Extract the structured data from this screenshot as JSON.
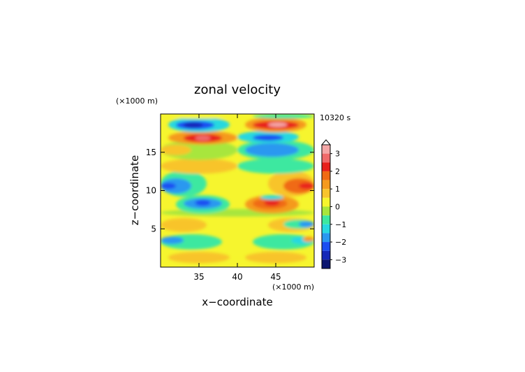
{
  "chart_data": {
    "type": "heatmap",
    "title": "zonal velocity",
    "time_label": "10320 s",
    "xlabel": "x−coordinate",
    "ylabel": "z−coordinate",
    "x_unit": "(×1000 m)",
    "y_unit": "(×1000 m)",
    "xlim": [
      30,
      50
    ],
    "ylim": [
      0,
      20
    ],
    "x_ticks": [
      "35",
      "40",
      "45"
    ],
    "x_tick_values": [
      35,
      40,
      45
    ],
    "y_ticks": [
      "5",
      "10",
      "15"
    ],
    "y_tick_values": [
      5,
      10,
      15
    ],
    "grid": false,
    "colorbar": {
      "position": "right",
      "labels": [
        "3",
        "2",
        "1",
        "0",
        "−1",
        "−2",
        "−3"
      ],
      "label_values": [
        3,
        2,
        1,
        0,
        -1,
        -2,
        -3
      ],
      "range": [
        -3.5,
        3.5
      ],
      "levels": [
        {
          "min": 3.0,
          "max": 3.5,
          "color": "#f4a6a6"
        },
        {
          "min": 2.5,
          "max": 3.0,
          "color": "#f06a6a"
        },
        {
          "min": 2.0,
          "max": 2.5,
          "color": "#e8201c"
        },
        {
          "min": 1.5,
          "max": 2.0,
          "color": "#f06a14"
        },
        {
          "min": 1.0,
          "max": 1.5,
          "color": "#f59a1e"
        },
        {
          "min": 0.5,
          "max": 1.0,
          "color": "#f8c42c"
        },
        {
          "min": 0.0,
          "max": 0.5,
          "color": "#f6f52e"
        },
        {
          "min": -0.5,
          "max": 0.0,
          "color": "#a8e63c"
        },
        {
          "min": -1.0,
          "max": -0.5,
          "color": "#3de8a0"
        },
        {
          "min": -1.5,
          "max": -1.0,
          "color": "#28d8e0"
        },
        {
          "min": -2.0,
          "max": -1.5,
          "color": "#2a98f0"
        },
        {
          "min": -2.5,
          "max": -2.0,
          "color": "#1a4ef2"
        },
        {
          "min": -3.0,
          "max": -2.5,
          "color": "#1528b8"
        },
        {
          "min": -3.5,
          "max": -3.0,
          "color": "#0c1670"
        }
      ]
    },
    "bands": [
      {
        "z": [
          0.0,
          1.0
        ],
        "x": [
          30,
          50
        ],
        "value": 0.2
      },
      {
        "z": [
          0.5,
          2.0
        ],
        "x": [
          31,
          39
        ],
        "value": 0.7
      },
      {
        "z": [
          0.5,
          2.0
        ],
        "x": [
          41,
          49
        ],
        "value": 0.7
      },
      {
        "z": [
          2.3,
          4.3
        ],
        "x": [
          30,
          38
        ],
        "value": -0.7
      },
      {
        "z": [
          2.3,
          4.3
        ],
        "x": [
          42,
          50
        ],
        "value": -0.7
      },
      {
        "z": [
          3.0,
          4.0
        ],
        "x": [
          30,
          33
        ],
        "value": -1.7
      },
      {
        "z": [
          3.0,
          4.0
        ],
        "x": [
          47,
          50
        ],
        "value": -1.2
      },
      {
        "z": [
          3.3,
          4.0
        ],
        "x": [
          48.5,
          50
        ],
        "value": 1.3
      },
      {
        "z": [
          4.6,
          6.4
        ],
        "x": [
          30,
          36
        ],
        "value": 0.8
      },
      {
        "z": [
          4.6,
          6.4
        ],
        "x": [
          44,
          50
        ],
        "value": 0.8
      },
      {
        "z": [
          5.0,
          6.2
        ],
        "x": [
          46,
          50
        ],
        "value": -0.8
      },
      {
        "z": [
          5.2,
          6.0
        ],
        "x": [
          48,
          50
        ],
        "value": -1.7
      },
      {
        "z": [
          6.6,
          7.6
        ],
        "x": [
          30,
          50
        ],
        "value": -0.2
      },
      {
        "z": [
          7.0,
          9.4
        ],
        "x": [
          32,
          39
        ],
        "value": -0.8
      },
      {
        "z": [
          7.6,
          9.0
        ],
        "x": [
          33,
          38
        ],
        "value": -1.7
      },
      {
        "z": [
          8.0,
          8.8
        ],
        "x": [
          34.5,
          36.5
        ],
        "value": -2.3
      },
      {
        "z": [
          7.0,
          9.4
        ],
        "x": [
          41,
          48
        ],
        "value": 1.2
      },
      {
        "z": [
          7.6,
          9.0
        ],
        "x": [
          42,
          46.5
        ],
        "value": 1.7
      },
      {
        "z": [
          8.0,
          8.8
        ],
        "x": [
          43.5,
          45.5
        ],
        "value": 2.3
      },
      {
        "z": [
          8.8,
          9.4
        ],
        "x": [
          43,
          46
        ],
        "value": -1.2
      },
      {
        "z": [
          9.2,
          12.6
        ],
        "x": [
          30,
          36
        ],
        "value": -0.8
      },
      {
        "z": [
          9.6,
          11.6
        ],
        "x": [
          30,
          34
        ],
        "value": -1.7
      },
      {
        "z": [
          10.2,
          11.0
        ],
        "x": [
          30,
          32
        ],
        "value": -2.3
      },
      {
        "z": [
          9.2,
          12.6
        ],
        "x": [
          44,
          50
        ],
        "value": 0.8
      },
      {
        "z": [
          9.6,
          11.6
        ],
        "x": [
          46,
          50
        ],
        "value": 1.7
      },
      {
        "z": [
          10.2,
          11.0
        ],
        "x": [
          48,
          50
        ],
        "value": 2.3
      },
      {
        "z": [
          12.2,
          14.2
        ],
        "x": [
          30,
          40
        ],
        "value": 0.7
      },
      {
        "z": [
          12.2,
          14.2
        ],
        "x": [
          40,
          50
        ],
        "value": -0.7
      },
      {
        "z": [
          14.0,
          16.6
        ],
        "x": [
          30,
          40
        ],
        "value": -0.2
      },
      {
        "z": [
          14.0,
          16.6
        ],
        "x": [
          40,
          50
        ],
        "value": -0.8
      },
      {
        "z": [
          14.4,
          16.2
        ],
        "x": [
          41,
          48
        ],
        "value": -1.7
      },
      {
        "z": [
          14.6,
          16.0
        ],
        "x": [
          30,
          34
        ],
        "value": 0.8
      },
      {
        "z": [
          16.0,
          17.8
        ],
        "x": [
          31,
          40
        ],
        "value": 1.3
      },
      {
        "z": [
          16.3,
          17.4
        ],
        "x": [
          33,
          38
        ],
        "value": 2.3
      },
      {
        "z": [
          16.5,
          17.2
        ],
        "x": [
          34.5,
          36.5
        ],
        "value": 2.7
      },
      {
        "z": [
          16.2,
          17.8
        ],
        "x": [
          40,
          48
        ],
        "value": -1.3
      },
      {
        "z": [
          16.5,
          17.3
        ],
        "x": [
          42,
          46
        ],
        "value": -2.3
      },
      {
        "z": [
          17.6,
          19.6
        ],
        "x": [
          31,
          39
        ],
        "value": -1.2
      },
      {
        "z": [
          18.0,
          19.1
        ],
        "x": [
          32,
          37
        ],
        "value": -2.3
      },
      {
        "z": [
          18.2,
          18.9
        ],
        "x": [
          33,
          35.5
        ],
        "value": -2.8
      },
      {
        "z": [
          17.6,
          19.6
        ],
        "x": [
          41,
          49
        ],
        "value": 1.3
      },
      {
        "z": [
          18.0,
          19.1
        ],
        "x": [
          42,
          48
        ],
        "value": 2.3
      },
      {
        "z": [
          18.3,
          18.9
        ],
        "x": [
          44,
          46.5
        ],
        "value": 3.2
      },
      {
        "z": [
          19.4,
          20.0
        ],
        "x": [
          30,
          40
        ],
        "value": 0.2
      },
      {
        "z": [
          19.4,
          20.0
        ],
        "x": [
          42,
          50
        ],
        "value": -0.8
      }
    ]
  }
}
